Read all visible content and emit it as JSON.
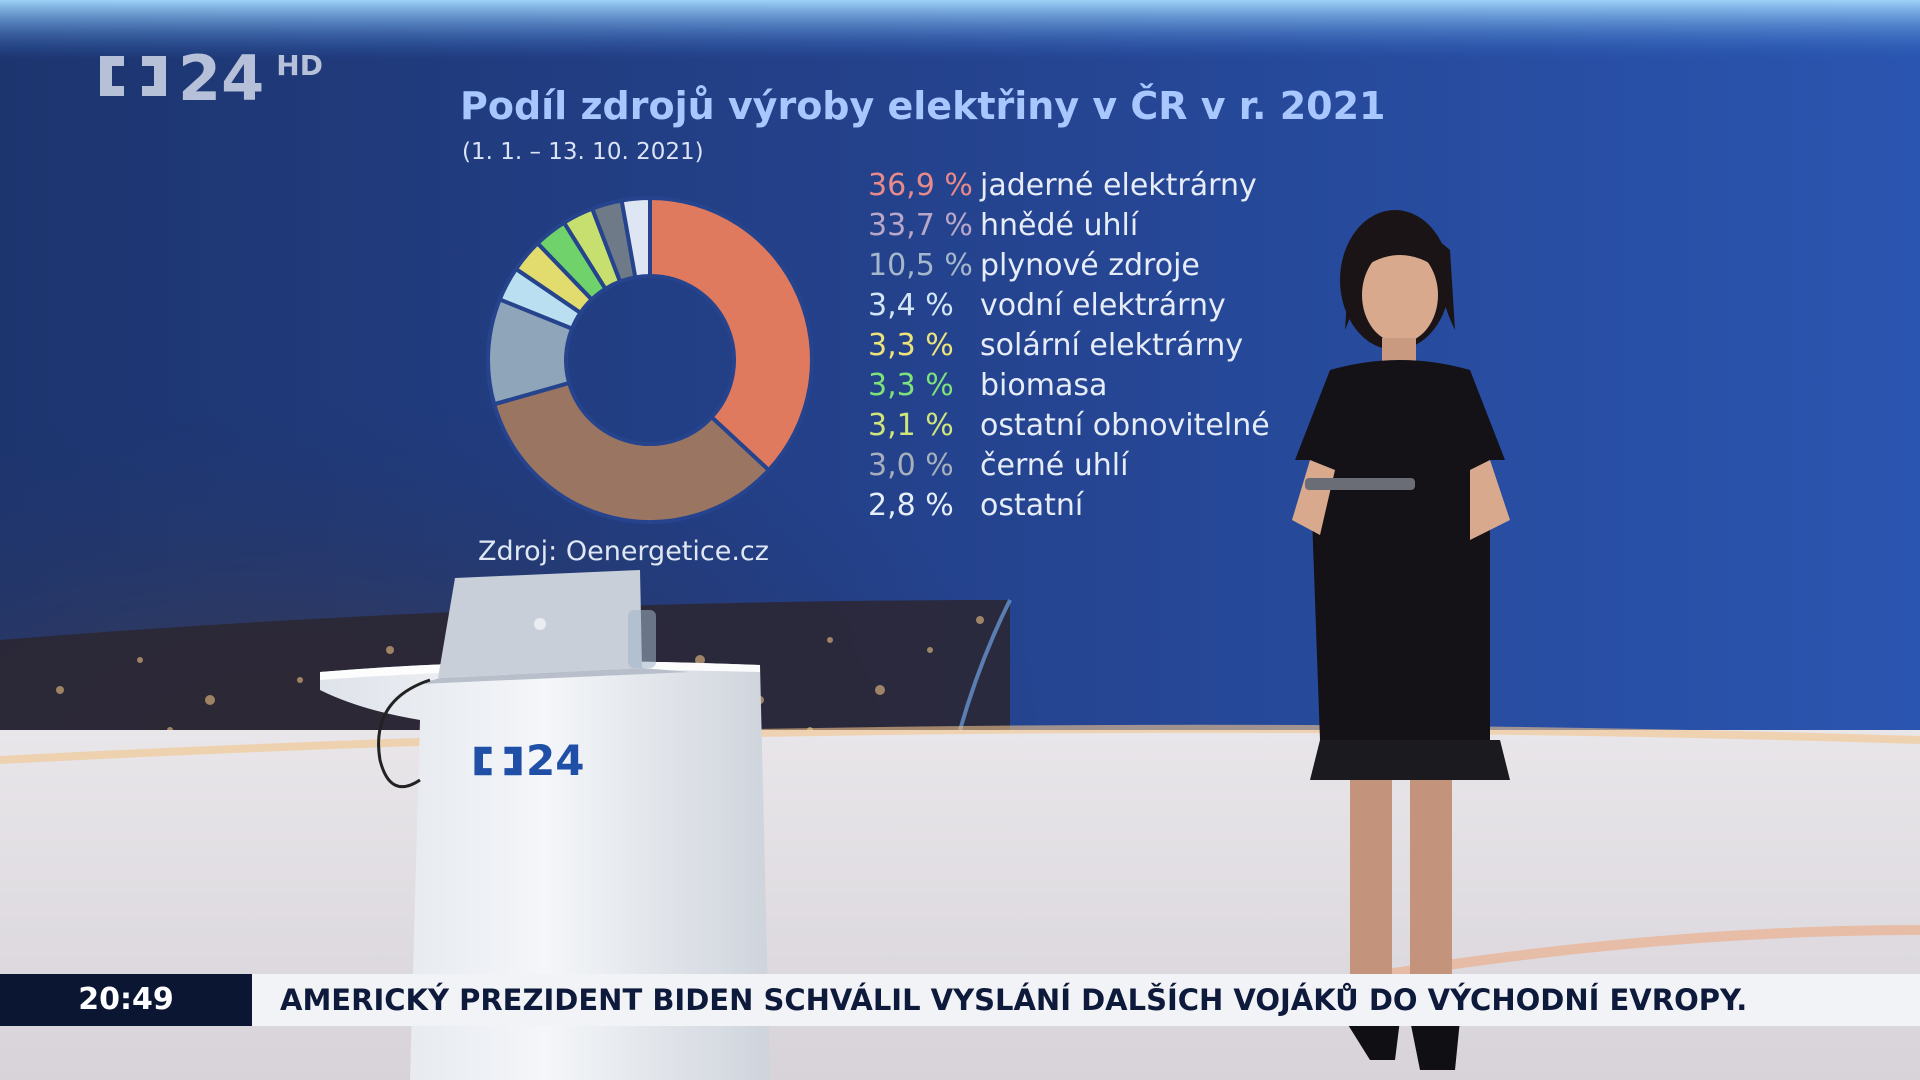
{
  "channel": {
    "logo_text": "24",
    "hd_badge": "HD",
    "desk_logo_text": "24"
  },
  "screen": {
    "title": "Podíl zdrojů výroby elektřiny v ČR v r. 2021",
    "subtitle": "(1. 1. – 13. 10. 2021)",
    "source": "Zdroj: Oenergetice.cz"
  },
  "chart_data": {
    "type": "pie",
    "variant": "donut",
    "title": "Podíl zdrojů výroby elektřiny v ČR v r. 2021",
    "subtitle": "(1. 1. – 13. 10. 2021)",
    "slices": [
      {
        "label": "jaderné elektrárny",
        "value_text": "36,9 %",
        "value": 36.9,
        "color": "#e07a5f"
      },
      {
        "label": "hnědé uhlí",
        "value_text": "33,7 %",
        "value": 33.7,
        "color": "#9a7562"
      },
      {
        "label": "plynové zdroje",
        "value_text": "10,5 %",
        "value": 10.5,
        "color": "#8ea5ba"
      },
      {
        "label": "vodní elektrárny",
        "value_text": "3,4 %",
        "value": 3.4,
        "color": "#b9dff0"
      },
      {
        "label": "solární elektrárny",
        "value_text": "3,3 %",
        "value": 3.3,
        "color": "#e2dc6e"
      },
      {
        "label": "biomasa",
        "value_text": "3,3 %",
        "value": 3.3,
        "color": "#6fd26a"
      },
      {
        "label": "ostatní obnovitelné",
        "value_text": "3,1 %",
        "value": 3.1,
        "color": "#c7df6e"
      },
      {
        "label": "černé uhlí",
        "value_text": "3,0 %",
        "value": 3.0,
        "color": "#6f7a88"
      },
      {
        "label": "ostatní",
        "value_text": "2,8 %",
        "value": 2.8,
        "color": "#dde6f2"
      }
    ],
    "legend_position": "right"
  },
  "ticker": {
    "time": "20:49",
    "headline": "AMERICKÝ PREZIDENT BIDEN SCHVÁLIL VYSLÁNÍ DALŠÍCH VOJÁKŮ DO VÝCHODNÍ EVROPY."
  },
  "colors": {
    "title": "#a9c7ff",
    "ticker_bg": "#f2f3f6",
    "ticker_time_bg": "#0b1633",
    "brand_blue": "#1f4fa6"
  }
}
